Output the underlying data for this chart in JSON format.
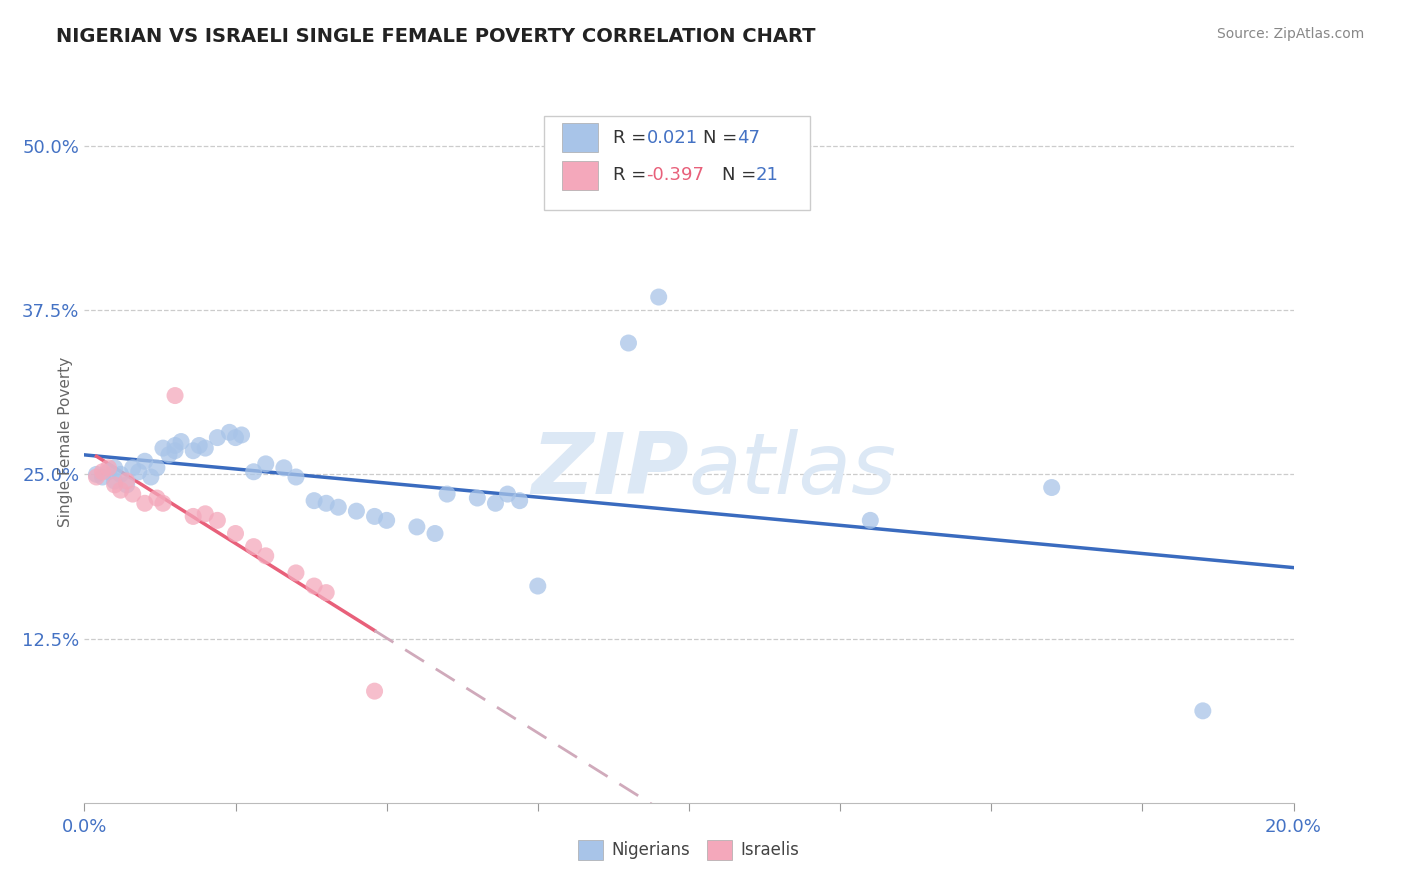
{
  "title": "NIGERIAN VS ISRAELI SINGLE FEMALE POVERTY CORRELATION CHART",
  "source": "Source: ZipAtlas.com",
  "ylabel": "Single Female Poverty",
  "yticks": [
    "12.5%",
    "25.0%",
    "37.5%",
    "50.0%"
  ],
  "ytick_values": [
    0.125,
    0.25,
    0.375,
    0.5
  ],
  "xrange": [
    0.0,
    0.2
  ],
  "yrange": [
    0.0,
    0.55
  ],
  "nigerian_R": 0.021,
  "nigerian_N": 47,
  "israeli_R": -0.397,
  "israeli_N": 21,
  "nigerian_color": "#a8c4e8",
  "israeli_color": "#f4a8bb",
  "nigerian_line_color": "#3a6bbf",
  "israeli_line_color": "#e8607a",
  "israeli_dashed_color": "#d0aabb",
  "watermark_color": "#dce8f5",
  "nigerian_points": [
    [
      0.002,
      0.25
    ],
    [
      0.003,
      0.248
    ],
    [
      0.004,
      0.252
    ],
    [
      0.005,
      0.255
    ],
    [
      0.005,
      0.245
    ],
    [
      0.006,
      0.25
    ],
    [
      0.007,
      0.242
    ],
    [
      0.008,
      0.255
    ],
    [
      0.009,
      0.252
    ],
    [
      0.01,
      0.26
    ],
    [
      0.011,
      0.248
    ],
    [
      0.012,
      0.255
    ],
    [
      0.013,
      0.27
    ],
    [
      0.014,
      0.265
    ],
    [
      0.015,
      0.272
    ],
    [
      0.015,
      0.268
    ],
    [
      0.016,
      0.275
    ],
    [
      0.018,
      0.268
    ],
    [
      0.019,
      0.272
    ],
    [
      0.02,
      0.27
    ],
    [
      0.022,
      0.278
    ],
    [
      0.024,
      0.282
    ],
    [
      0.025,
      0.278
    ],
    [
      0.026,
      0.28
    ],
    [
      0.028,
      0.252
    ],
    [
      0.03,
      0.258
    ],
    [
      0.033,
      0.255
    ],
    [
      0.035,
      0.248
    ],
    [
      0.038,
      0.23
    ],
    [
      0.04,
      0.228
    ],
    [
      0.042,
      0.225
    ],
    [
      0.045,
      0.222
    ],
    [
      0.048,
      0.218
    ],
    [
      0.05,
      0.215
    ],
    [
      0.055,
      0.21
    ],
    [
      0.058,
      0.205
    ],
    [
      0.06,
      0.235
    ],
    [
      0.065,
      0.232
    ],
    [
      0.068,
      0.228
    ],
    [
      0.07,
      0.235
    ],
    [
      0.072,
      0.23
    ],
    [
      0.075,
      0.165
    ],
    [
      0.09,
      0.35
    ],
    [
      0.095,
      0.385
    ],
    [
      0.13,
      0.215
    ],
    [
      0.16,
      0.24
    ],
    [
      0.185,
      0.07
    ]
  ],
  "israeli_points": [
    [
      0.002,
      0.248
    ],
    [
      0.003,
      0.252
    ],
    [
      0.004,
      0.255
    ],
    [
      0.005,
      0.242
    ],
    [
      0.006,
      0.238
    ],
    [
      0.007,
      0.245
    ],
    [
      0.008,
      0.235
    ],
    [
      0.01,
      0.228
    ],
    [
      0.012,
      0.232
    ],
    [
      0.013,
      0.228
    ],
    [
      0.015,
      0.31
    ],
    [
      0.018,
      0.218
    ],
    [
      0.02,
      0.22
    ],
    [
      0.022,
      0.215
    ],
    [
      0.025,
      0.205
    ],
    [
      0.028,
      0.195
    ],
    [
      0.03,
      0.188
    ],
    [
      0.035,
      0.175
    ],
    [
      0.038,
      0.165
    ],
    [
      0.04,
      0.16
    ],
    [
      0.048,
      0.085
    ]
  ]
}
